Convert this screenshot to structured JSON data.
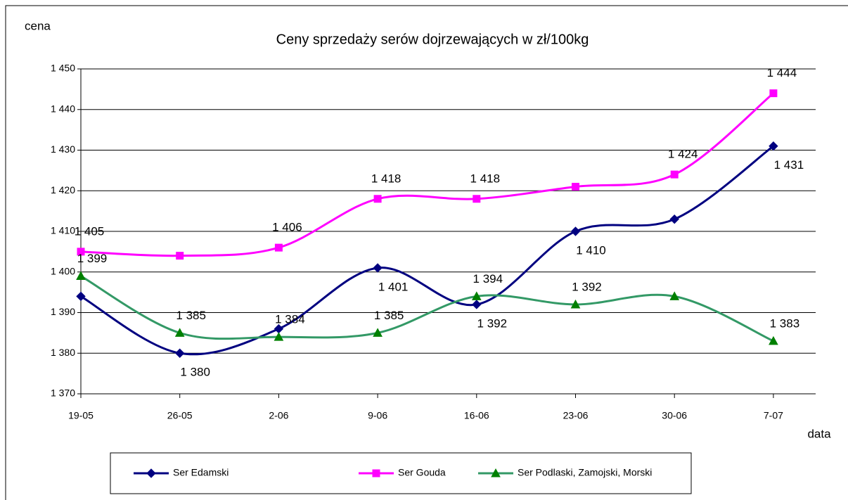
{
  "chart_data": {
    "type": "line",
    "title": "Ceny sprzedaży serów dojrzewających w zł/100kg",
    "y_label": "cena",
    "x_label": "data",
    "categories": [
      "19-05",
      "26-05",
      "2-06",
      "9-06",
      "16-06",
      "23-06",
      "30-06",
      "7-07"
    ],
    "series": [
      {
        "name": "Ser Edamski",
        "color": "#000080",
        "marker": "diamond",
        "values": [
          1394,
          1380,
          1386,
          1401,
          1392,
          1410,
          1413,
          1431
        ],
        "value_labels": [
          null,
          "1 380",
          null,
          "1 401",
          "1 392",
          "1 410",
          null,
          "1 431"
        ]
      },
      {
        "name": "Ser Gouda",
        "color": "#ff00ff",
        "marker": "square",
        "values": [
          1405,
          1404,
          1406,
          1418,
          1418,
          1421,
          1424,
          1444
        ],
        "value_labels": [
          "1 405",
          null,
          "1 406",
          "1 418",
          "1 418",
          null,
          "1 424",
          "1 444"
        ]
      },
      {
        "name": "Ser Podlaski, Zamojski, Morski",
        "color": "#339966",
        "marker": "triangle",
        "values": [
          1399,
          1385,
          1384,
          1385,
          1394,
          1392,
          1394,
          1383
        ],
        "value_labels": [
          "1 399",
          "1 385",
          "1 384",
          "1 385",
          "1 394",
          "1 392",
          null,
          "1 383"
        ]
      }
    ],
    "ylim": [
      1370,
      1450
    ],
    "yticks": [
      {
        "value": 1370,
        "label": "1 370"
      },
      {
        "value": 1380,
        "label": "1 380"
      },
      {
        "value": 1390,
        "label": "1 390"
      },
      {
        "value": 1400,
        "label": "1 400"
      },
      {
        "value": 1410,
        "label": "1 410"
      },
      {
        "value": 1420,
        "label": "1 420"
      },
      {
        "value": 1430,
        "label": "1 430"
      },
      {
        "value": 1440,
        "label": "1 440"
      },
      {
        "value": 1450,
        "label": "1 450"
      }
    ],
    "grid": true,
    "legend": "bottom"
  }
}
